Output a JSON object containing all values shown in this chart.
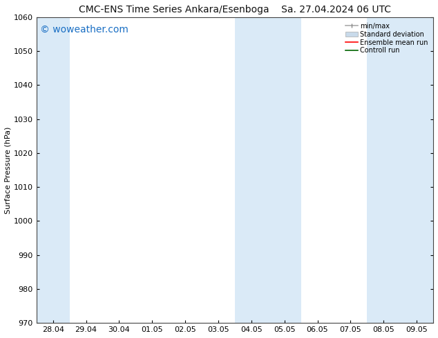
{
  "title_left": "CMC-ENS Time Series Ankara/Esenboga",
  "title_right": "Sa. 27.04.2024 06 UTC",
  "ylabel": "Surface Pressure (hPa)",
  "ylim": [
    970,
    1060
  ],
  "yticks": [
    970,
    980,
    990,
    1000,
    1010,
    1020,
    1030,
    1040,
    1050,
    1060
  ],
  "x_labels": [
    "28.04",
    "29.04",
    "30.04",
    "01.05",
    "02.05",
    "03.05",
    "04.05",
    "05.05",
    "06.05",
    "07.05",
    "08.05",
    "09.05"
  ],
  "x_positions": [
    0,
    1,
    2,
    3,
    4,
    5,
    6,
    7,
    8,
    9,
    10,
    11
  ],
  "xlim": [
    -0.5,
    11.5
  ],
  "shaded_bands": [
    {
      "x_start": -0.5,
      "x_end": 0.5,
      "color": "#daeaf7"
    },
    {
      "x_start": 5.5,
      "x_end": 7.5,
      "color": "#daeaf7"
    },
    {
      "x_start": 9.5,
      "x_end": 11.5,
      "color": "#daeaf7"
    }
  ],
  "watermark_text": "© woweather.com",
  "watermark_color": "#1a6fc4",
  "watermark_fontsize": 10,
  "legend_labels": [
    "min/max",
    "Standard deviation",
    "Ensemble mean run",
    "Controll run"
  ],
  "background_color": "#ffffff",
  "plot_bg_color": "#ffffff",
  "title_fontsize": 10,
  "axis_label_fontsize": 8,
  "tick_fontsize": 8
}
